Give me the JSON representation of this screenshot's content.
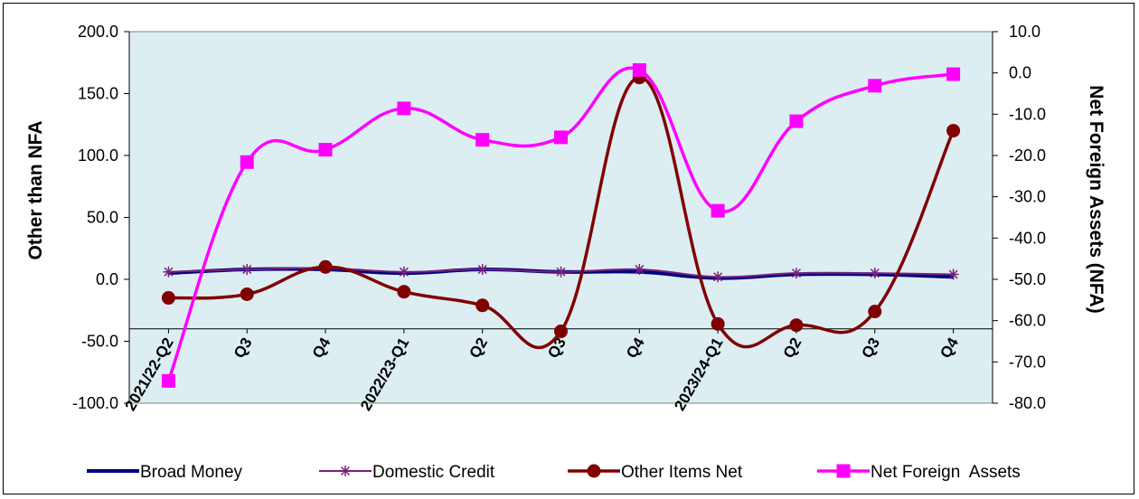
{
  "chart_data": {
    "type": "line",
    "categories": [
      "2021/22-Q2",
      "Q3",
      "Q4",
      "2022/23-Q1",
      "Q2",
      "Q3",
      "Q4",
      "2023/24-Q1",
      "Q2",
      "Q3",
      "Q4"
    ],
    "y_left": {
      "label": "Other than NFA",
      "range": [
        -100,
        200
      ],
      "ticks": [
        "-100.0",
        "-50.0",
        "0.0",
        "50.0",
        "100.0",
        "150.0",
        "200.0"
      ]
    },
    "y_right": {
      "label": "Net Foreign Assets (NFA)",
      "range": [
        -80,
        10
      ],
      "ticks": [
        "-80.0",
        "-70.0",
        "-60.0",
        "-50.0",
        "-40.0",
        "-30.0",
        "-20.0",
        "-10.0",
        "0.0",
        "10.0"
      ]
    },
    "series": [
      {
        "name": "Broad Money",
        "axis": "left",
        "color": "#000080",
        "marker": "none",
        "values": [
          5,
          8,
          8,
          5,
          8,
          6,
          6,
          1,
          4,
          4,
          2
        ]
      },
      {
        "name": "Domestic Credit",
        "axis": "left",
        "color": "#7B1F7B",
        "marker": "star",
        "values": [
          6,
          8,
          9,
          6,
          8,
          6,
          8,
          2,
          5,
          5,
          4
        ]
      },
      {
        "name": "Other Items Net",
        "axis": "left",
        "color": "#800000",
        "marker": "circle",
        "values": [
          -15,
          -12,
          10,
          -10,
          -21,
          -42,
          163,
          -36,
          -37,
          -26,
          120
        ]
      },
      {
        "name": "Net Foreign  Assets",
        "axis": "right",
        "color": "#FF00FF",
        "marker": "square",
        "values": [
          -74.6,
          -21.6,
          -18.6,
          -8.6,
          -16.2,
          -15.6,
          0.7,
          -33.4,
          -11.7,
          -3.1,
          -0.3
        ]
      }
    ],
    "grid": false,
    "legend_position": "bottom",
    "plot_background": "#DCEEF2"
  }
}
